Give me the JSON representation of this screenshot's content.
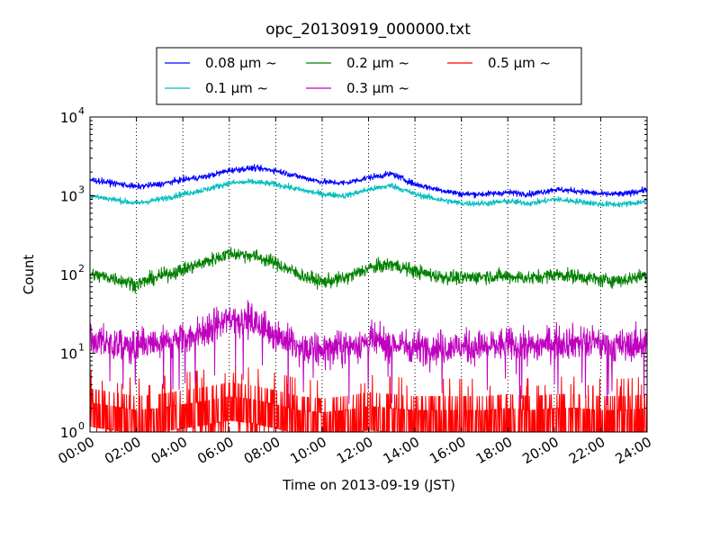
{
  "chart_data": {
    "type": "line",
    "title": "opc_20130919_000000.txt",
    "xlabel": "Time on 2013-09-19 (JST)",
    "ylabel": "Count",
    "x_ticks": [
      "00:00",
      "02:00",
      "04:00",
      "06:00",
      "08:00",
      "10:00",
      "12:00",
      "14:00",
      "16:00",
      "18:00",
      "20:00",
      "22:00",
      "24:00"
    ],
    "x_tick_hours": [
      0,
      2,
      4,
      6,
      8,
      10,
      12,
      14,
      16,
      18,
      20,
      22,
      24
    ],
    "xlim_hours": [
      0,
      24
    ],
    "y_scale": "log",
    "ylim": [
      1,
      10000
    ],
    "y_ticks": [
      {
        "value": 1,
        "base": "10",
        "exp": "0"
      },
      {
        "value": 10,
        "base": "10",
        "exp": "1"
      },
      {
        "value": 100,
        "base": "10",
        "exp": "2"
      },
      {
        "value": 1000,
        "base": "10",
        "exp": "3"
      },
      {
        "value": 10000,
        "base": "10",
        "exp": "4"
      }
    ],
    "grid": "vertical dotted at x ticks",
    "legend_position": "top, above plot",
    "x_hours": [
      0,
      1,
      2,
      3,
      4,
      5,
      6,
      7,
      8,
      9,
      10,
      11,
      12,
      13,
      14,
      15,
      16,
      17,
      18,
      19,
      20,
      21,
      22,
      23,
      24
    ],
    "series": [
      {
        "name": "0.08 μm ~",
        "color": "#0000ff",
        "noise": 0.06,
        "values": [
          1600,
          1450,
          1300,
          1400,
          1600,
          1750,
          2100,
          2250,
          2100,
          1750,
          1500,
          1450,
          1700,
          1900,
          1400,
          1200,
          1050,
          1050,
          1100,
          1050,
          1200,
          1150,
          1050,
          1050,
          1200
        ]
      },
      {
        "name": "0.1 μm ~",
        "color": "#00bfbf",
        "noise": 0.06,
        "values": [
          1000,
          900,
          800,
          900,
          1050,
          1200,
          1450,
          1500,
          1400,
          1200,
          1050,
          1000,
          1200,
          1350,
          1050,
          900,
          800,
          800,
          850,
          800,
          900,
          850,
          780,
          780,
          850
        ]
      },
      {
        "name": "0.2 μm ~",
        "color": "#008000",
        "noise": 0.14,
        "values": [
          100,
          90,
          75,
          95,
          115,
          145,
          185,
          175,
          140,
          100,
          80,
          90,
          120,
          135,
          110,
          95,
          90,
          95,
          95,
          90,
          100,
          95,
          85,
          85,
          100
        ]
      },
      {
        "name": "0.3 μm ~",
        "color": "#bf00bf",
        "noise": 0.34,
        "values": [
          15,
          13,
          12,
          13,
          15,
          19,
          28,
          25,
          18,
          11,
          11,
          12,
          14,
          13,
          12,
          12,
          12,
          12,
          13,
          12,
          14,
          14,
          13,
          12,
          14
        ]
      },
      {
        "name": "0.5 μm ~",
        "color": "#ff0000",
        "discrete": true,
        "values": [
          2,
          1.8,
          1.6,
          1.7,
          1.9,
          2.1,
          2.4,
          2.2,
          1.9,
          1.6,
          1.5,
          1.6,
          1.8,
          1.7,
          1.6,
          1.6,
          1.6,
          1.6,
          1.7,
          1.6,
          1.7,
          1.7,
          1.6,
          1.6,
          1.7
        ]
      }
    ]
  }
}
